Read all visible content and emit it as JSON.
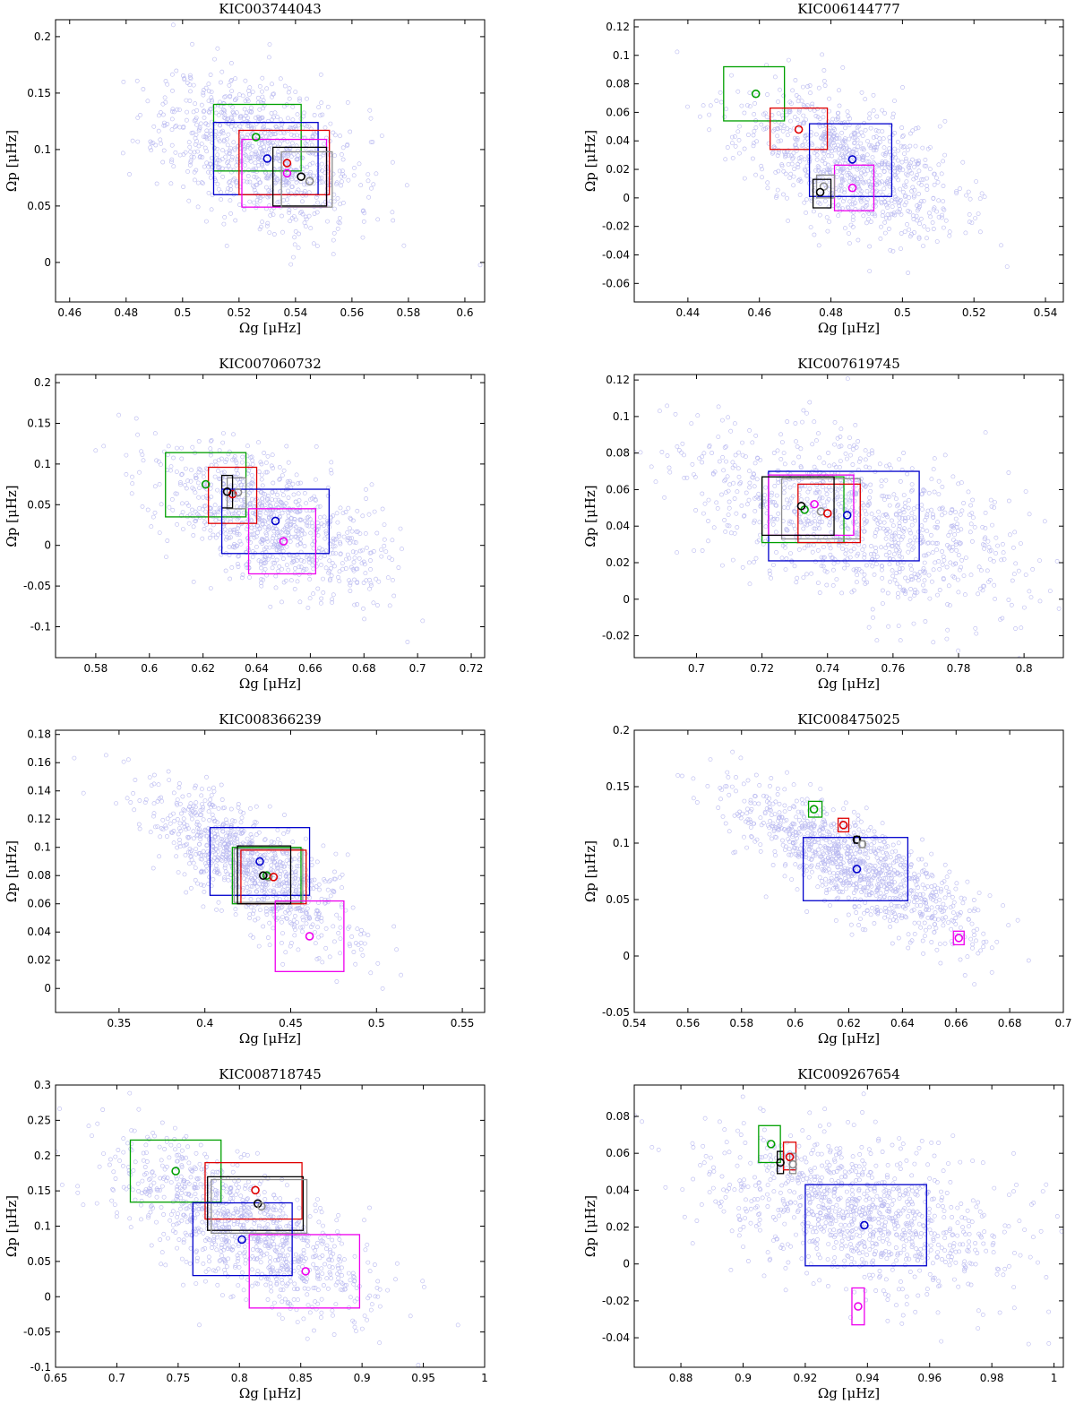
{
  "figure": {
    "xlabel": "Ωg [μHz]",
    "ylabel": "Ωp [μHz]",
    "series_colors": {
      "green": "#00a000",
      "red": "#e00000",
      "blue": "#0000cc",
      "black": "#000000",
      "gray": "#8c8c8c",
      "magenta": "#ee00ee",
      "cloud": "#b8b8f0"
    }
  },
  "chart_data": [
    {
      "type": "scatter",
      "title": "KIC003744043",
      "xlabel": "Ωg [μHz]",
      "ylabel": "Ωp [μHz]",
      "xlim": [
        0.455,
        0.607
      ],
      "ylim": [
        -0.035,
        0.215
      ],
      "xticks": [
        0.46,
        0.48,
        0.5,
        0.52,
        0.54,
        0.56,
        0.58,
        0.6
      ],
      "xticklabels": [
        "0.46",
        "0.48",
        "0.5",
        "0.52",
        "0.54",
        "0.56",
        "0.58",
        "0.6"
      ],
      "yticks": [
        0,
        0.05,
        0.1,
        0.15,
        0.2
      ],
      "yticklabels": [
        "0",
        "0.05",
        "0.1",
        "0.15",
        "0.2"
      ],
      "cloud": {
        "cx": 0.527,
        "cy": 0.1,
        "sx": 0.017,
        "sy": 0.033,
        "rho": -0.35,
        "n": 900,
        "seed": 11
      },
      "estimates": [
        {
          "color": "green",
          "x": 0.526,
          "y": 0.111,
          "x0": 0.511,
          "x1": 0.542,
          "y0": 0.081,
          "y1": 0.14
        },
        {
          "color": "blue",
          "x": 0.53,
          "y": 0.092,
          "x0": 0.511,
          "x1": 0.548,
          "y0": 0.06,
          "y1": 0.124
        },
        {
          "color": "red",
          "x": 0.537,
          "y": 0.088,
          "x0": 0.52,
          "x1": 0.552,
          "y0": 0.06,
          "y1": 0.117
        },
        {
          "color": "magenta",
          "x": 0.537,
          "y": 0.079,
          "x0": 0.521,
          "x1": 0.551,
          "y0": 0.049,
          "y1": 0.109
        },
        {
          "color": "black",
          "x": 0.542,
          "y": 0.076,
          "x0": 0.532,
          "x1": 0.551,
          "y0": 0.05,
          "y1": 0.102
        },
        {
          "color": "gray",
          "x": 0.545,
          "y": 0.072,
          "x0": 0.535,
          "x1": 0.553,
          "y0": 0.049,
          "y1": 0.098
        }
      ]
    },
    {
      "type": "scatter",
      "title": "KIC006144777",
      "xlabel": "Ωg [μHz]",
      "ylabel": "Ωp [μHz]",
      "xlim": [
        0.425,
        0.545
      ],
      "ylim": [
        -0.073,
        0.125
      ],
      "xticks": [
        0.44,
        0.46,
        0.48,
        0.5,
        0.52,
        0.54
      ],
      "xticklabels": [
        "0.44",
        "0.46",
        "0.48",
        "0.5",
        "0.52",
        "0.54"
      ],
      "yticks": [
        -0.06,
        -0.04,
        -0.02,
        0,
        0.02,
        0.04,
        0.06,
        0.08,
        0.1,
        0.12
      ],
      "yticklabels": [
        "-0.06",
        "-0.04",
        "-0.02",
        "0",
        "0.02",
        "0.04",
        "0.06",
        "0.08",
        "0.1",
        "0.12"
      ],
      "cloud": {
        "cx": 0.484,
        "cy": 0.024,
        "sx": 0.015,
        "sy": 0.026,
        "rho": -0.55,
        "n": 900,
        "seed": 23
      },
      "estimates": [
        {
          "color": "green",
          "x": 0.459,
          "y": 0.073,
          "x0": 0.45,
          "x1": 0.467,
          "y0": 0.054,
          "y1": 0.092
        },
        {
          "color": "red",
          "x": 0.471,
          "y": 0.048,
          "x0": 0.463,
          "x1": 0.479,
          "y0": 0.034,
          "y1": 0.063
        },
        {
          "color": "blue",
          "x": 0.486,
          "y": 0.027,
          "x0": 0.474,
          "x1": 0.497,
          "y0": 0.001,
          "y1": 0.052
        },
        {
          "color": "magenta",
          "x": 0.486,
          "y": 0.007,
          "x0": 0.481,
          "x1": 0.492,
          "y0": -0.009,
          "y1": 0.023
        },
        {
          "color": "gray",
          "x": 0.478,
          "y": 0.008,
          "x0": 0.476,
          "x1": 0.481,
          "y0": 0.0,
          "y1": 0.016
        },
        {
          "color": "black",
          "x": 0.477,
          "y": 0.004,
          "x0": 0.475,
          "x1": 0.48,
          "y0": -0.007,
          "y1": 0.013
        }
      ]
    },
    {
      "type": "scatter",
      "title": "KIC007060732",
      "xlabel": "Ωg [μHz]",
      "ylabel": "Ωp [μHz]",
      "xlim": [
        0.565,
        0.725
      ],
      "ylim": [
        -0.138,
        0.21
      ],
      "xticks": [
        0.58,
        0.6,
        0.62,
        0.64,
        0.66,
        0.68,
        0.7,
        0.72
      ],
      "xticklabels": [
        "0.58",
        "0.6",
        "0.62",
        "0.64",
        "0.66",
        "0.68",
        "0.7",
        "0.72"
      ],
      "yticks": [
        -0.1,
        -0.05,
        0,
        0.05,
        0.1,
        0.15,
        0.2
      ],
      "yticklabels": [
        "-0.1",
        "-0.05",
        "0",
        "0.05",
        "0.1",
        "0.15",
        "0.2"
      ],
      "cloud": {
        "cx": 0.645,
        "cy": 0.03,
        "sx": 0.02,
        "sy": 0.045,
        "rho": -0.55,
        "n": 900,
        "seed": 37
      },
      "estimates": [
        {
          "color": "green",
          "x": 0.621,
          "y": 0.075,
          "x0": 0.606,
          "x1": 0.636,
          "y0": 0.035,
          "y1": 0.114
        },
        {
          "color": "red",
          "x": 0.631,
          "y": 0.063,
          "x0": 0.622,
          "x1": 0.64,
          "y0": 0.027,
          "y1": 0.096
        },
        {
          "color": "gray",
          "x": 0.633,
          "y": 0.065,
          "x0": 0.629,
          "x1": 0.636,
          "y0": 0.045,
          "y1": 0.083
        },
        {
          "color": "black",
          "x": 0.629,
          "y": 0.066,
          "x0": 0.627,
          "x1": 0.631,
          "y0": 0.046,
          "y1": 0.086
        },
        {
          "color": "blue",
          "x": 0.647,
          "y": 0.03,
          "x0": 0.627,
          "x1": 0.667,
          "y0": -0.01,
          "y1": 0.069
        },
        {
          "color": "magenta",
          "x": 0.65,
          "y": 0.005,
          "x0": 0.637,
          "x1": 0.662,
          "y0": -0.035,
          "y1": 0.045
        }
      ]
    },
    {
      "type": "scatter",
      "title": "KIC007619745",
      "xlabel": "Ωg [μHz]",
      "ylabel": "Ωp [μHz]",
      "xlim": [
        0.681,
        0.812
      ],
      "ylim": [
        -0.032,
        0.123
      ],
      "xticks": [
        0.7,
        0.72,
        0.74,
        0.76,
        0.78,
        0.8
      ],
      "xticklabels": [
        "0.7",
        "0.72",
        "0.74",
        "0.76",
        "0.78",
        "0.8"
      ],
      "yticks": [
        -0.02,
        0,
        0.02,
        0.04,
        0.06,
        0.08,
        0.1,
        0.12
      ],
      "yticklabels": [
        "-0.02",
        "0",
        "0.02",
        "0.04",
        "0.06",
        "0.08",
        "0.1",
        "0.12"
      ],
      "cloud": {
        "cx": 0.748,
        "cy": 0.043,
        "sx": 0.025,
        "sy": 0.025,
        "rho": -0.5,
        "n": 1000,
        "seed": 41
      },
      "estimates": [
        {
          "color": "blue",
          "x": 0.746,
          "y": 0.046,
          "x0": 0.722,
          "x1": 0.768,
          "y0": 0.021,
          "y1": 0.07
        },
        {
          "color": "green",
          "x": 0.733,
          "y": 0.049,
          "x0": 0.72,
          "x1": 0.745,
          "y0": 0.031,
          "y1": 0.067
        },
        {
          "color": "gray",
          "x": 0.738,
          "y": 0.048,
          "x0": 0.726,
          "x1": 0.75,
          "y0": 0.033,
          "y1": 0.066
        },
        {
          "color": "red",
          "x": 0.74,
          "y": 0.047,
          "x0": 0.731,
          "x1": 0.75,
          "y0": 0.031,
          "y1": 0.063
        },
        {
          "color": "magenta",
          "x": 0.736,
          "y": 0.052,
          "x0": 0.722,
          "x1": 0.748,
          "y0": 0.035,
          "y1": 0.068
        },
        {
          "color": "black",
          "x": 0.732,
          "y": 0.051,
          "x0": 0.72,
          "x1": 0.742,
          "y0": 0.035,
          "y1": 0.067
        }
      ]
    },
    {
      "type": "scatter",
      "title": "KIC008366239",
      "xlabel": "Ωg [μHz]",
      "ylabel": "Ωp [μHz]",
      "xlim": [
        0.313,
        0.563
      ],
      "ylim": [
        -0.017,
        0.183
      ],
      "xticks": [
        0.35,
        0.4,
        0.45,
        0.5,
        0.55
      ],
      "xticklabels": [
        "0.35",
        "0.4",
        "0.45",
        "0.5",
        "0.55"
      ],
      "yticks": [
        0,
        0.02,
        0.04,
        0.06,
        0.08,
        0.1,
        0.12,
        0.14,
        0.16,
        0.18
      ],
      "yticklabels": [
        "0",
        "0.02",
        "0.04",
        "0.06",
        "0.08",
        "0.1",
        "0.12",
        "0.14",
        "0.16",
        "0.18"
      ],
      "cloud": {
        "cx": 0.428,
        "cy": 0.085,
        "sx": 0.03,
        "sy": 0.028,
        "rho": -0.75,
        "n": 900,
        "seed": 53
      },
      "estimates": [
        {
          "color": "blue",
          "x": 0.432,
          "y": 0.09,
          "x0": 0.403,
          "x1": 0.461,
          "y0": 0.066,
          "y1": 0.114
        },
        {
          "color": "gray",
          "x": 0.437,
          "y": 0.079,
          "x0": 0.417,
          "x1": 0.457,
          "y0": 0.061,
          "y1": 0.099
        },
        {
          "color": "green",
          "x": 0.436,
          "y": 0.08,
          "x0": 0.416,
          "x1": 0.456,
          "y0": 0.06,
          "y1": 0.1
        },
        {
          "color": "red",
          "x": 0.44,
          "y": 0.079,
          "x0": 0.421,
          "x1": 0.459,
          "y0": 0.06,
          "y1": 0.098
        },
        {
          "color": "black",
          "x": 0.434,
          "y": 0.08,
          "x0": 0.419,
          "x1": 0.45,
          "y0": 0.06,
          "y1": 0.101
        },
        {
          "color": "magenta",
          "x": 0.461,
          "y": 0.037,
          "x0": 0.441,
          "x1": 0.481,
          "y0": 0.012,
          "y1": 0.062
        }
      ]
    },
    {
      "type": "scatter",
      "title": "KIC008475025",
      "xlabel": "Ωg [μHz]",
      "ylabel": "Ωp [μHz]",
      "xlim": [
        0.54,
        0.7
      ],
      "ylim": [
        -0.05,
        0.2
      ],
      "xticks": [
        0.54,
        0.56,
        0.58,
        0.6,
        0.62,
        0.64,
        0.66,
        0.68,
        0.7
      ],
      "xticklabels": [
        "0.54",
        "0.56",
        "0.58",
        "0.6",
        "0.62",
        "0.64",
        "0.66",
        "0.68",
        "0.7"
      ],
      "yticks": [
        -0.05,
        0,
        0.05,
        0.1,
        0.15,
        0.2
      ],
      "yticklabels": [
        "-0.05",
        "0",
        "0.05",
        "0.1",
        "0.15",
        "0.2"
      ],
      "cloud": {
        "cx": 0.622,
        "cy": 0.08,
        "sx": 0.022,
        "sy": 0.033,
        "rho": -0.8,
        "n": 1000,
        "seed": 67
      },
      "estimates": [
        {
          "color": "green",
          "x": 0.607,
          "y": 0.13,
          "x0": 0.605,
          "x1": 0.61,
          "y0": 0.123,
          "y1": 0.137
        },
        {
          "color": "red",
          "x": 0.618,
          "y": 0.116,
          "x0": 0.616,
          "x1": 0.62,
          "y0": 0.11,
          "y1": 0.122
        },
        {
          "color": "black",
          "x": 0.623,
          "y": 0.103,
          "x0": 0.622,
          "x1": 0.624,
          "y0": 0.1,
          "y1": 0.106
        },
        {
          "color": "gray",
          "x": 0.625,
          "y": 0.099,
          "x0": 0.624,
          "x1": 0.626,
          "y0": 0.096,
          "y1": 0.102
        },
        {
          "color": "blue",
          "x": 0.623,
          "y": 0.077,
          "x0": 0.603,
          "x1": 0.642,
          "y0": 0.049,
          "y1": 0.105
        },
        {
          "color": "magenta",
          "x": 0.661,
          "y": 0.016,
          "x0": 0.659,
          "x1": 0.663,
          "y0": 0.01,
          "y1": 0.022
        }
      ]
    },
    {
      "type": "scatter",
      "title": "KIC008718745",
      "xlabel": "Ωg [μHz]",
      "ylabel": "Ωp [μHz]",
      "xlim": [
        0.65,
        1.0
      ],
      "ylim": [
        -0.1,
        0.3
      ],
      "xticks": [
        0.65,
        0.7,
        0.75,
        0.8,
        0.85,
        0.9,
        0.95,
        1.0
      ],
      "xticklabels": [
        "0.65",
        "0.7",
        "0.75",
        "0.8",
        "0.85",
        "0.9",
        "0.95",
        "1"
      ],
      "yticks": [
        -0.1,
        -0.05,
        0,
        0.05,
        0.1,
        0.15,
        0.2,
        0.25,
        0.3
      ],
      "yticklabels": [
        "-0.1",
        "-0.05",
        "0",
        "0.05",
        "0.1",
        "0.15",
        "0.2",
        "0.25",
        "0.3"
      ],
      "cloud": {
        "cx": 0.8,
        "cy": 0.1,
        "sx": 0.05,
        "sy": 0.06,
        "rho": -0.7,
        "n": 1000,
        "seed": 79
      },
      "estimates": [
        {
          "color": "green",
          "x": 0.748,
          "y": 0.178,
          "x0": 0.711,
          "x1": 0.785,
          "y0": 0.134,
          "y1": 0.222
        },
        {
          "color": "red",
          "x": 0.813,
          "y": 0.151,
          "x0": 0.772,
          "x1": 0.851,
          "y0": 0.11,
          "y1": 0.19
        },
        {
          "color": "black",
          "x": 0.815,
          "y": 0.132,
          "x0": 0.774,
          "x1": 0.852,
          "y0": 0.094,
          "y1": 0.17
        },
        {
          "color": "gray",
          "x": 0.818,
          "y": 0.128,
          "x0": 0.777,
          "x1": 0.855,
          "y0": 0.09,
          "y1": 0.166
        },
        {
          "color": "blue",
          "x": 0.802,
          "y": 0.081,
          "x0": 0.762,
          "x1": 0.843,
          "y0": 0.03,
          "y1": 0.133
        },
        {
          "color": "magenta",
          "x": 0.854,
          "y": 0.036,
          "x0": 0.808,
          "x1": 0.898,
          "y0": -0.016,
          "y1": 0.088
        }
      ]
    },
    {
      "type": "scatter",
      "title": "KIC009267654",
      "xlabel": "Ωg [μHz]",
      "ylabel": "Ωp [μHz]",
      "xlim": [
        0.865,
        1.003
      ],
      "ylim": [
        -0.056,
        0.097
      ],
      "xticks": [
        0.88,
        0.9,
        0.92,
        0.94,
        0.96,
        0.98,
        1.0
      ],
      "xticklabels": [
        "0.88",
        "0.9",
        "0.92",
        "0.94",
        "0.96",
        "0.98",
        "1"
      ],
      "yticks": [
        -0.04,
        -0.02,
        0,
        0.02,
        0.04,
        0.06,
        0.08
      ],
      "yticklabels": [
        "-0.04",
        "-0.02",
        "0",
        "0.02",
        "0.04",
        "0.06",
        "0.08"
      ],
      "cloud": {
        "cx": 0.937,
        "cy": 0.028,
        "sx": 0.025,
        "sy": 0.022,
        "rho": -0.45,
        "n": 1000,
        "seed": 97
      },
      "estimates": [
        {
          "color": "green",
          "x": 0.909,
          "y": 0.065,
          "x0": 0.905,
          "x1": 0.912,
          "y0": 0.055,
          "y1": 0.075
        },
        {
          "color": "black",
          "x": 0.912,
          "y": 0.055,
          "x0": 0.911,
          "x1": 0.913,
          "y0": 0.049,
          "y1": 0.061
        },
        {
          "color": "red",
          "x": 0.915,
          "y": 0.058,
          "x0": 0.913,
          "x1": 0.917,
          "y0": 0.051,
          "y1": 0.066
        },
        {
          "color": "gray",
          "x": 0.916,
          "y": 0.054,
          "x0": 0.915,
          "x1": 0.917,
          "y0": 0.049,
          "y1": 0.06
        },
        {
          "color": "blue",
          "x": 0.939,
          "y": 0.021,
          "x0": 0.92,
          "x1": 0.959,
          "y0": -0.001,
          "y1": 0.043
        },
        {
          "color": "magenta",
          "x": 0.937,
          "y": -0.023,
          "x0": 0.935,
          "x1": 0.939,
          "y0": -0.033,
          "y1": -0.013
        }
      ]
    }
  ]
}
